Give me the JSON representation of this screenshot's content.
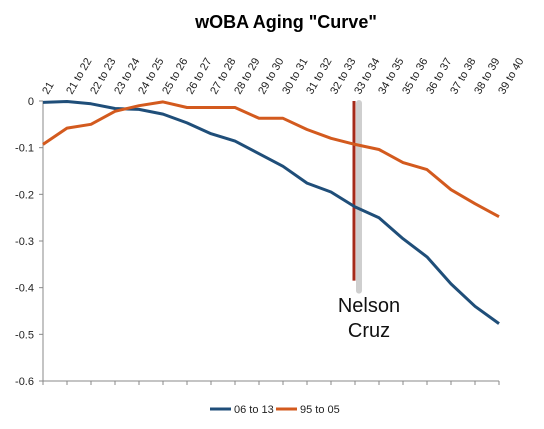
{
  "chart_data": {
    "type": "line",
    "title": "wOBA Aging \"Curve\"",
    "xlabel": "",
    "ylabel": "",
    "categories": [
      "21",
      "21 to 22",
      "22 to 23",
      "23 to 24",
      "24 to 25",
      "25 to 26",
      "26 to 27",
      "27 to 28",
      "28 to 29",
      "29 to 30",
      "30 to 31",
      "31 to 32",
      "32 to 33",
      "33 to 34",
      "34 to 35",
      "35 to 36",
      "36 to 37",
      "37 to 38",
      "38 to 39",
      "39 to 40"
    ],
    "ylim": [
      -0.6,
      0
    ],
    "yticks": [
      0,
      -0.1,
      -0.2,
      -0.3,
      -0.4,
      -0.5,
      -0.6
    ],
    "ytick_labels": [
      "0",
      "-0.1",
      "-0.2",
      "-0.3",
      "-0.4",
      "-0.5",
      "-0.6"
    ],
    "grid": false,
    "legend_position": "bottom",
    "series": [
      {
        "name": "06 to 13",
        "color": "#1f4e79",
        "values": [
          -0.003,
          -0.001,
          -0.006,
          -0.016,
          -0.018,
          -0.028,
          -0.047,
          -0.07,
          -0.086,
          -0.113,
          -0.14,
          -0.176,
          -0.195,
          -0.227,
          -0.25,
          -0.295,
          -0.334,
          -0.392,
          -0.44,
          -0.477
        ]
      },
      {
        "name": "95 to 05",
        "color": "#d35a1e",
        "values": [
          -0.093,
          -0.058,
          -0.05,
          -0.022,
          -0.01,
          -0.002,
          -0.014,
          -0.014,
          -0.014,
          -0.037,
          -0.037,
          -0.061,
          -0.08,
          -0.093,
          -0.104,
          -0.132,
          -0.147,
          -0.19,
          -0.22,
          -0.248
        ]
      }
    ],
    "annotation": {
      "text_line1": "Nelson",
      "text_line2": "Cruz",
      "marker_category": "33 to 34",
      "marker_color": "#a52a1a",
      "y_from": 0,
      "y_to": -0.385
    }
  }
}
